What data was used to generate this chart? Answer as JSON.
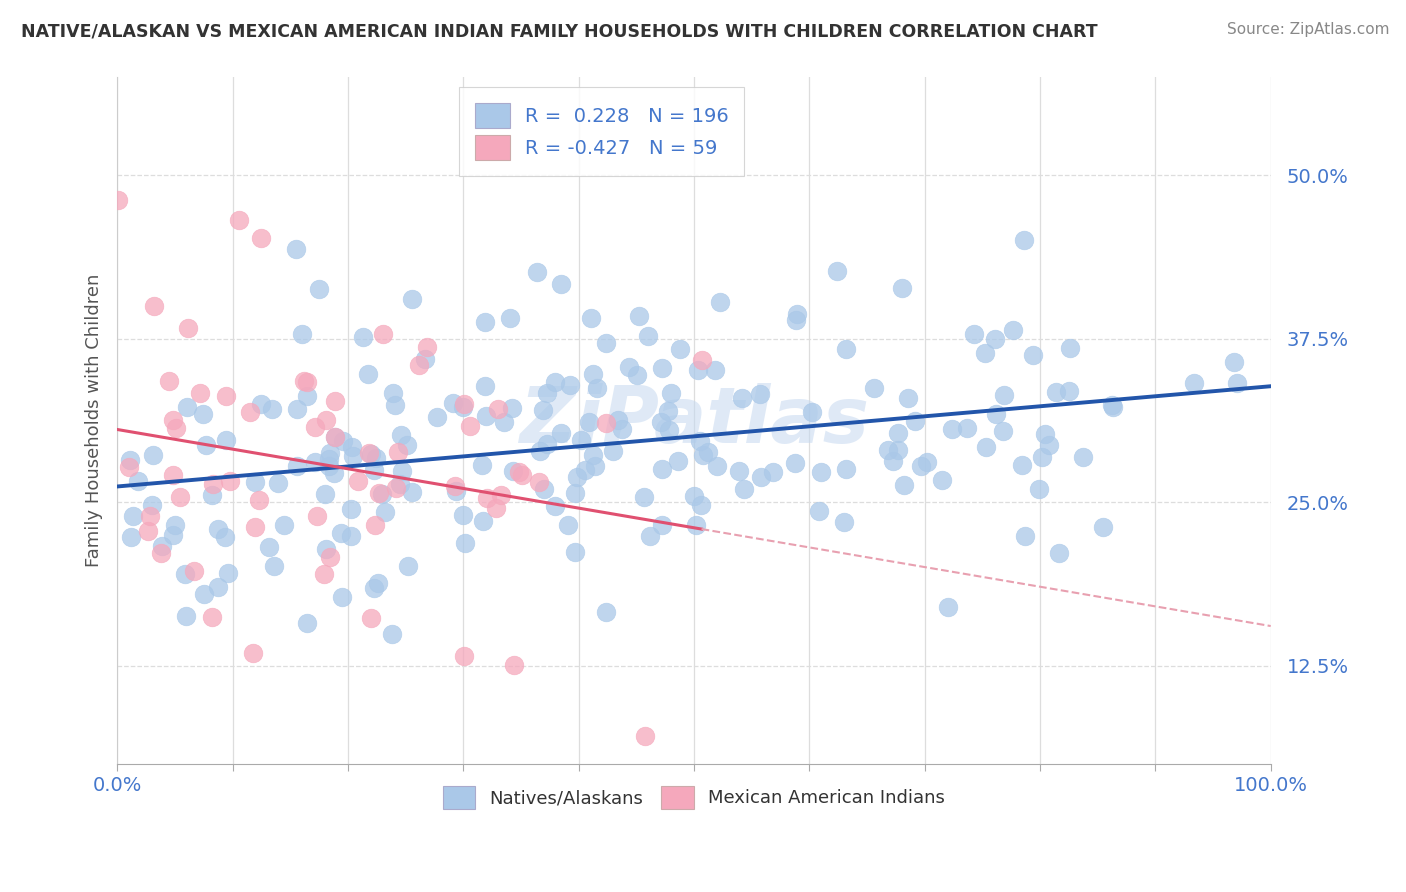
{
  "title": "NATIVE/ALASKAN VS MEXICAN AMERICAN INDIAN FAMILY HOUSEHOLDS WITH CHILDREN CORRELATION CHART",
  "source": "Source: ZipAtlas.com",
  "ylabel": "Family Households with Children",
  "xlim": [
    0.0,
    1.0
  ],
  "ylim": [
    0.05,
    0.575
  ],
  "yticks": [
    0.125,
    0.25,
    0.375,
    0.5
  ],
  "ytick_labels": [
    "12.5%",
    "25.0%",
    "37.5%",
    "50.0%"
  ],
  "xtick_labels_left": "0.0%",
  "xtick_labels_right": "100.0%",
  "blue_R": 0.228,
  "blue_N": 196,
  "pink_R": -0.427,
  "pink_N": 59,
  "blue_color": "#aac8e8",
  "pink_color": "#f5a8bc",
  "blue_line_color": "#2255aa",
  "pink_line_color": "#e05070",
  "pink_line_dashed_color": "#e8a0b0",
  "background_color": "#ffffff",
  "legend_label_blue": "Natives/Alaskans",
  "legend_label_pink": "Mexican American Indians",
  "title_color": "#333333",
  "axis_tick_color": "#4477cc",
  "grid_color": "#dddddd",
  "watermark_color": "#c5d8f0",
  "seed": 7
}
